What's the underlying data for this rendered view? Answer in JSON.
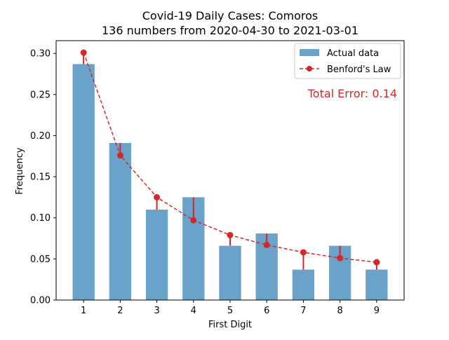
{
  "chart_data": {
    "type": "bar",
    "title_line1": "Covid-19 Daily Cases: Comoros",
    "title_line2": "136 numbers from 2020-04-30 to 2021-03-01",
    "xlabel": "First Digit",
    "ylabel": "Frequency",
    "categories": [
      "1",
      "2",
      "3",
      "4",
      "5",
      "6",
      "7",
      "8",
      "9"
    ],
    "x": [
      1,
      2,
      3,
      4,
      5,
      6,
      7,
      8,
      9
    ],
    "series": [
      {
        "name": "Actual data",
        "kind": "bar",
        "color": "#6aa2c9",
        "values": [
          0.287,
          0.191,
          0.11,
          0.125,
          0.066,
          0.081,
          0.037,
          0.066,
          0.037
        ]
      },
      {
        "name": "Benford's Law",
        "kind": "line-markers-dashed",
        "color": "#d62728",
        "values": [
          0.301,
          0.176,
          0.125,
          0.097,
          0.079,
          0.067,
          0.058,
          0.051,
          0.046
        ]
      }
    ],
    "ylim": [
      0,
      0.3155
    ],
    "xlim": [
      0.25,
      9.75
    ],
    "yticks": [
      0.0,
      0.05,
      0.1,
      0.15,
      0.2,
      0.25,
      0.3
    ],
    "ytick_labels": [
      "0.00",
      "0.05",
      "0.10",
      "0.15",
      "0.20",
      "0.25",
      "0.30"
    ],
    "grid": false,
    "legend_position": "top-right",
    "annotation": {
      "text": "Total Error: 0.14",
      "color": "#d62728"
    }
  }
}
